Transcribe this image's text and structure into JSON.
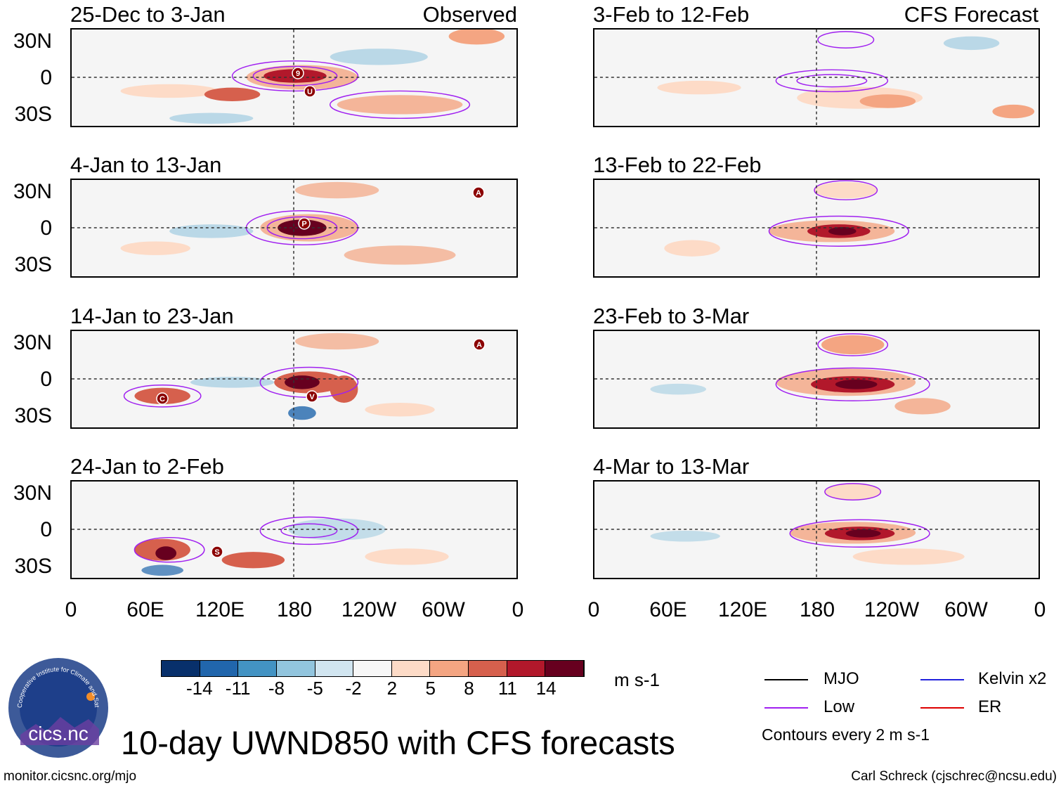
{
  "figure_title": "10-day UWND850 with CFS forecasts",
  "footer": {
    "url": "monitor.cicsnc.org/mjo",
    "author": "Carl Schreck (cjschrec@ncsu.edu)"
  },
  "logo": {
    "text": "cics.nc",
    "ring_text": "Cooperative Institute for Climate and Satellites"
  },
  "column_headers": {
    "observed": "Observed",
    "forecast": "CFS Forecast"
  },
  "lat_ticks": [
    "30N",
    "0",
    "30S"
  ],
  "lon_ticks": [
    "0",
    "60E",
    "120E",
    "180",
    "120W",
    "60W",
    "0"
  ],
  "colorbar": {
    "units": "m s-1",
    "labels": [
      "-14",
      "-11",
      "-8",
      "-5",
      "-2",
      "2",
      "5",
      "8",
      "11",
      "14"
    ],
    "colors": [
      "#08306b",
      "#2166ac",
      "#4393c3",
      "#92c5de",
      "#d1e5f0",
      "#f7f7f7",
      "#fddbc7",
      "#f4a582",
      "#d6604d",
      "#b2182b",
      "#67001f"
    ]
  },
  "legend": {
    "items": [
      {
        "label": "MJO",
        "color": "#000000"
      },
      {
        "label": "Kelvin x2",
        "color": "#2222dd"
      },
      {
        "label": "Low",
        "color": "#a020f0"
      },
      {
        "label": "ER",
        "color": "#dd0000"
      }
    ],
    "note": "Contours every 2 m s-1"
  },
  "chart_data": {
    "type": "heatmap",
    "variable": "10-day 850-hPa zonal wind anomaly (m s-1)",
    "x_axis": {
      "ticks": [
        "0",
        "60E",
        "120E",
        "180",
        "120W",
        "60W",
        "0"
      ],
      "range": [
        0,
        360
      ]
    },
    "y_axis": {
      "ticks": [
        "30N",
        "0",
        "30S"
      ],
      "range": [
        -40,
        40
      ]
    },
    "panels": [
      {
        "period": "25-Dec to 3-Jan",
        "source": "Observed",
        "storm_markers": [
          "9",
          "U"
        ]
      },
      {
        "period": "4-Jan to 13-Jan",
        "source": "Observed",
        "storm_markers": [
          "P",
          "A"
        ]
      },
      {
        "period": "14-Jan to 23-Jan",
        "source": "Observed",
        "storm_markers": [
          "C",
          "V",
          "A"
        ]
      },
      {
        "period": "24-Jan to 2-Feb",
        "source": "Observed",
        "storm_markers": [
          "S"
        ]
      },
      {
        "period": "3-Feb to 12-Feb",
        "source": "CFS Forecast",
        "storm_markers": []
      },
      {
        "period": "13-Feb to 22-Feb",
        "source": "CFS Forecast",
        "storm_markers": []
      },
      {
        "period": "23-Feb to 3-Mar",
        "source": "CFS Forecast",
        "storm_markers": []
      },
      {
        "period": "4-Mar to 13-Mar",
        "source": "CFS Forecast",
        "storm_markers": []
      }
    ]
  }
}
